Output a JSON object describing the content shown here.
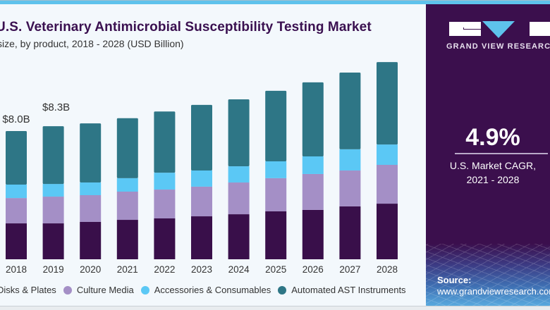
{
  "header": {
    "title": "U.S. Veterinary Antimicrobial Susceptibility Testing Market",
    "subtitle": "size, by product, 2018 - 2028 (USD Billion)"
  },
  "sidebar": {
    "brand": "GRAND VIEW RESEARCH",
    "cagr_value": "4.9%",
    "cagr_label_line1": "U.S. Market CAGR,",
    "cagr_label_line2": "2021 - 2028",
    "source_label": "Source:",
    "source_url": "www.grandviewresearch.com"
  },
  "colors": {
    "disks_plates": "#390f4a",
    "culture_media": "#a48fc6",
    "accessories": "#5bc8f5",
    "automated": "#2e7686",
    "brand_purple": "#3b0f4d",
    "accent_blue": "#5ec2ec"
  },
  "chart_data": {
    "type": "bar",
    "stacked": true,
    "title": "U.S. Veterinary Antimicrobial Susceptibility Testing Market",
    "subtitle": "size, by product, 2018 - 2028 (USD Billion)",
    "xlabel": "",
    "ylabel": "USD Billion",
    "ylim": [
      0,
      13
    ],
    "grid": false,
    "legend_position": "bottom",
    "categories": [
      "2018",
      "2019",
      "2020",
      "2021",
      "2022",
      "2023",
      "2024",
      "2025",
      "2026",
      "2027",
      "2028"
    ],
    "series": [
      {
        "name": "Disks & Plates",
        "color": "#390f4a",
        "values": [
          2.24,
          2.24,
          2.33,
          2.46,
          2.55,
          2.68,
          2.81,
          2.99,
          3.08,
          3.3,
          3.47
        ]
      },
      {
        "name": "Culture Media",
        "color": "#a48fc6",
        "values": [
          1.58,
          1.67,
          1.67,
          1.76,
          1.8,
          1.85,
          1.98,
          2.07,
          2.24,
          2.24,
          2.42
        ]
      },
      {
        "name": "Accessories & Consumables",
        "color": "#5bc8f5",
        "values": [
          0.84,
          0.79,
          0.79,
          0.84,
          1.05,
          1.01,
          1.01,
          1.05,
          1.1,
          1.32,
          1.27
        ]
      },
      {
        "name": "Automated AST Instruments",
        "color": "#2e7686",
        "values": [
          3.34,
          3.6,
          3.69,
          3.74,
          3.82,
          4.09,
          4.18,
          4.4,
          4.62,
          4.79,
          5.14
        ]
      }
    ],
    "annotations": [
      {
        "category": "2018",
        "text": "$8.0B"
      },
      {
        "category": "2019",
        "text": "$8.3B"
      }
    ]
  }
}
